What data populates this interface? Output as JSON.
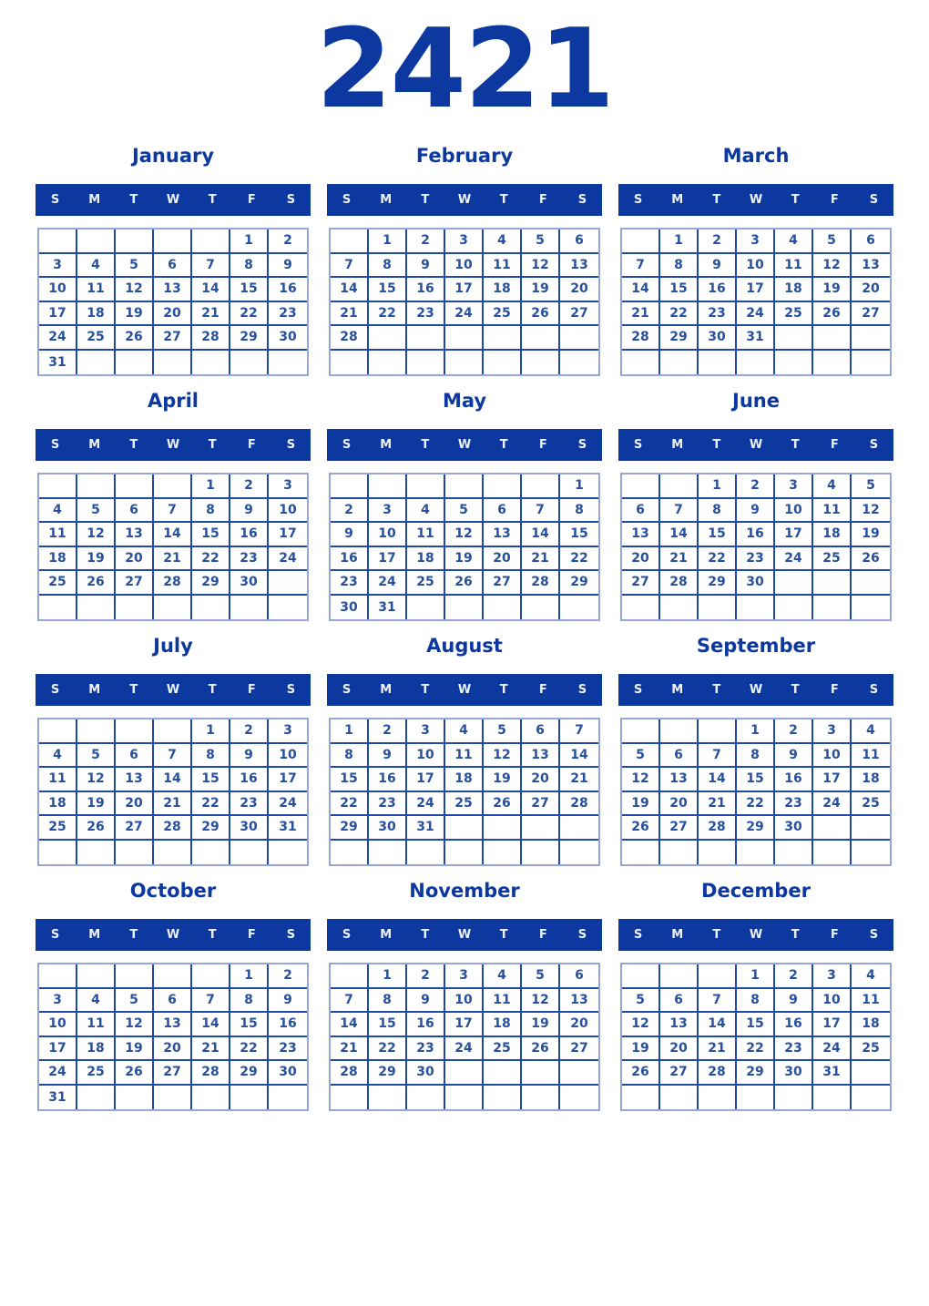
{
  "year": "2421",
  "colors": {
    "primary": "#0c38a0",
    "date_text": "#27509e",
    "grid_inner_line": "#2149a6",
    "grid_outer_frame": "#96a6d8",
    "weekday_text": "#edf1fa",
    "background": "#ffffff"
  },
  "weekday_initials": [
    "S",
    "M",
    "T",
    "W",
    "T",
    "F",
    "S"
  ],
  "months": [
    {
      "name": "January",
      "weeks": [
        [
          "",
          "",
          "",
          "",
          "",
          "1",
          "2"
        ],
        [
          "3",
          "4",
          "5",
          "6",
          "7",
          "8",
          "9"
        ],
        [
          "10",
          "11",
          "12",
          "13",
          "14",
          "15",
          "16"
        ],
        [
          "17",
          "18",
          "19",
          "20",
          "21",
          "22",
          "23"
        ],
        [
          "24",
          "25",
          "26",
          "27",
          "28",
          "29",
          "30"
        ],
        [
          "31",
          "",
          "",
          "",
          "",
          "",
          ""
        ]
      ]
    },
    {
      "name": "February",
      "weeks": [
        [
          "",
          "1",
          "2",
          "3",
          "4",
          "5",
          "6"
        ],
        [
          "7",
          "8",
          "9",
          "10",
          "11",
          "12",
          "13"
        ],
        [
          "14",
          "15",
          "16",
          "17",
          "18",
          "19",
          "20"
        ],
        [
          "21",
          "22",
          "23",
          "24",
          "25",
          "26",
          "27"
        ],
        [
          "28",
          "",
          "",
          "",
          "",
          "",
          ""
        ],
        [
          "",
          "",
          "",
          "",
          "",
          "",
          ""
        ]
      ]
    },
    {
      "name": "March",
      "weeks": [
        [
          "",
          "1",
          "2",
          "3",
          "4",
          "5",
          "6"
        ],
        [
          "7",
          "8",
          "9",
          "10",
          "11",
          "12",
          "13"
        ],
        [
          "14",
          "15",
          "16",
          "17",
          "18",
          "19",
          "20"
        ],
        [
          "21",
          "22",
          "23",
          "24",
          "25",
          "26",
          "27"
        ],
        [
          "28",
          "29",
          "30",
          "31",
          "",
          "",
          ""
        ],
        [
          "",
          "",
          "",
          "",
          "",
          "",
          ""
        ]
      ]
    },
    {
      "name": "April",
      "weeks": [
        [
          "",
          "",
          "",
          "",
          "1",
          "2",
          "3"
        ],
        [
          "4",
          "5",
          "6",
          "7",
          "8",
          "9",
          "10"
        ],
        [
          "11",
          "12",
          "13",
          "14",
          "15",
          "16",
          "17"
        ],
        [
          "18",
          "19",
          "20",
          "21",
          "22",
          "23",
          "24"
        ],
        [
          "25",
          "26",
          "27",
          "28",
          "29",
          "30",
          ""
        ],
        [
          "",
          "",
          "",
          "",
          "",
          "",
          ""
        ]
      ]
    },
    {
      "name": "May",
      "weeks": [
        [
          "",
          "",
          "",
          "",
          "",
          "",
          "1"
        ],
        [
          "2",
          "3",
          "4",
          "5",
          "6",
          "7",
          "8"
        ],
        [
          "9",
          "10",
          "11",
          "12",
          "13",
          "14",
          "15"
        ],
        [
          "16",
          "17",
          "18",
          "19",
          "20",
          "21",
          "22"
        ],
        [
          "23",
          "24",
          "25",
          "26",
          "27",
          "28",
          "29"
        ],
        [
          "30",
          "31",
          "",
          "",
          "",
          "",
          ""
        ]
      ]
    },
    {
      "name": "June",
      "weeks": [
        [
          "",
          "",
          "1",
          "2",
          "3",
          "4",
          "5"
        ],
        [
          "6",
          "7",
          "8",
          "9",
          "10",
          "11",
          "12"
        ],
        [
          "13",
          "14",
          "15",
          "16",
          "17",
          "18",
          "19"
        ],
        [
          "20",
          "21",
          "22",
          "23",
          "24",
          "25",
          "26"
        ],
        [
          "27",
          "28",
          "29",
          "30",
          "",
          "",
          ""
        ],
        [
          "",
          "",
          "",
          "",
          "",
          "",
          ""
        ]
      ]
    },
    {
      "name": "July",
      "weeks": [
        [
          "",
          "",
          "",
          "",
          "1",
          "2",
          "3"
        ],
        [
          "4",
          "5",
          "6",
          "7",
          "8",
          "9",
          "10"
        ],
        [
          "11",
          "12",
          "13",
          "14",
          "15",
          "16",
          "17"
        ],
        [
          "18",
          "19",
          "20",
          "21",
          "22",
          "23",
          "24"
        ],
        [
          "25",
          "26",
          "27",
          "28",
          "29",
          "30",
          "31"
        ],
        [
          "",
          "",
          "",
          "",
          "",
          "",
          ""
        ]
      ]
    },
    {
      "name": "August",
      "weeks": [
        [
          "1",
          "2",
          "3",
          "4",
          "5",
          "6",
          "7"
        ],
        [
          "8",
          "9",
          "10",
          "11",
          "12",
          "13",
          "14"
        ],
        [
          "15",
          "16",
          "17",
          "18",
          "19",
          "20",
          "21"
        ],
        [
          "22",
          "23",
          "24",
          "25",
          "26",
          "27",
          "28"
        ],
        [
          "29",
          "30",
          "31",
          "",
          "",
          "",
          ""
        ],
        [
          "",
          "",
          "",
          "",
          "",
          "",
          ""
        ]
      ]
    },
    {
      "name": "September",
      "weeks": [
        [
          "",
          "",
          "",
          "1",
          "2",
          "3",
          "4"
        ],
        [
          "5",
          "6",
          "7",
          "8",
          "9",
          "10",
          "11"
        ],
        [
          "12",
          "13",
          "14",
          "15",
          "16",
          "17",
          "18"
        ],
        [
          "19",
          "20",
          "21",
          "22",
          "23",
          "24",
          "25"
        ],
        [
          "26",
          "27",
          "28",
          "29",
          "30",
          "",
          ""
        ],
        [
          "",
          "",
          "",
          "",
          "",
          "",
          ""
        ]
      ]
    },
    {
      "name": "October",
      "weeks": [
        [
          "",
          "",
          "",
          "",
          "",
          "1",
          "2"
        ],
        [
          "3",
          "4",
          "5",
          "6",
          "7",
          "8",
          "9"
        ],
        [
          "10",
          "11",
          "12",
          "13",
          "14",
          "15",
          "16"
        ],
        [
          "17",
          "18",
          "19",
          "20",
          "21",
          "22",
          "23"
        ],
        [
          "24",
          "25",
          "26",
          "27",
          "28",
          "29",
          "30"
        ],
        [
          "31",
          "",
          "",
          "",
          "",
          "",
          ""
        ]
      ]
    },
    {
      "name": "November",
      "weeks": [
        [
          "",
          "1",
          "2",
          "3",
          "4",
          "5",
          "6"
        ],
        [
          "7",
          "8",
          "9",
          "10",
          "11",
          "12",
          "13"
        ],
        [
          "14",
          "15",
          "16",
          "17",
          "18",
          "19",
          "20"
        ],
        [
          "21",
          "22",
          "23",
          "24",
          "25",
          "26",
          "27"
        ],
        [
          "28",
          "29",
          "30",
          "",
          "",
          "",
          ""
        ],
        [
          "",
          "",
          "",
          "",
          "",
          "",
          ""
        ]
      ]
    },
    {
      "name": "December",
      "weeks": [
        [
          "",
          "",
          "",
          "1",
          "2",
          "3",
          "4"
        ],
        [
          "5",
          "6",
          "7",
          "8",
          "9",
          "10",
          "11"
        ],
        [
          "12",
          "13",
          "14",
          "15",
          "16",
          "17",
          "18"
        ],
        [
          "19",
          "20",
          "21",
          "22",
          "23",
          "24",
          "25"
        ],
        [
          "26",
          "27",
          "28",
          "29",
          "30",
          "31",
          ""
        ],
        [
          "",
          "",
          "",
          "",
          "",
          "",
          ""
        ]
      ]
    }
  ]
}
